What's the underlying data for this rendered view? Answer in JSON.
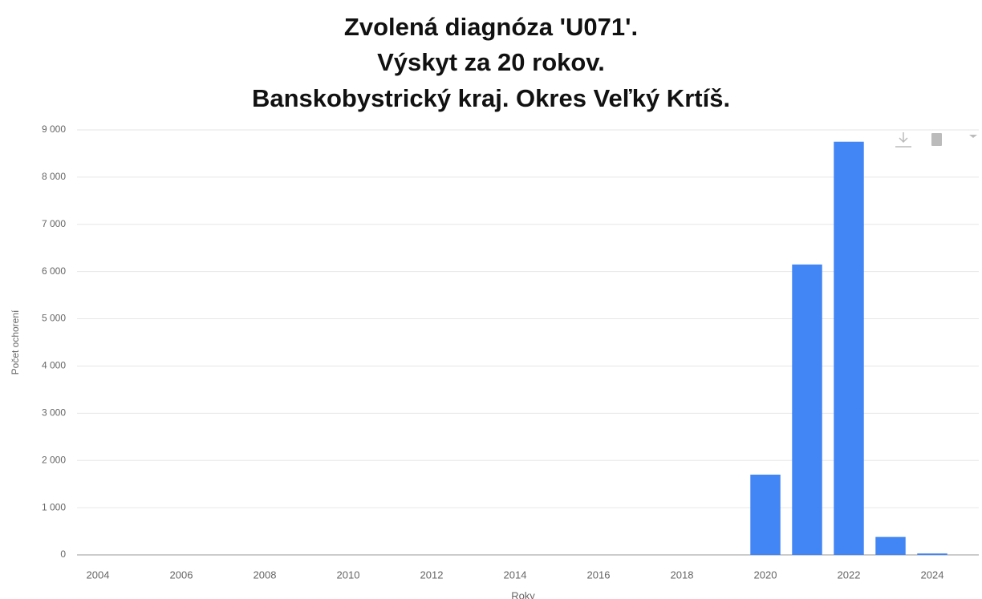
{
  "chart_data": {
    "type": "bar",
    "title": [
      "Zvolená diagnóza 'U071'.",
      "Výskyt za 20 rokov.",
      "Banskobystrický kraj. Okres Veľký Krtíš."
    ],
    "x_label": "Roky",
    "y_label": "Počet ochorení",
    "categories": [
      "2004",
      null,
      "2006",
      null,
      "2008",
      null,
      "2010",
      null,
      "2012",
      null,
      "2014",
      null,
      "2016",
      null,
      "2018",
      null,
      "2020",
      null,
      "2022",
      null,
      "2024"
    ],
    "values": [
      0,
      0,
      0,
      0,
      0,
      0,
      0,
      0,
      0,
      0,
      0,
      0,
      0,
      0,
      0,
      0,
      1700,
      6150,
      8750,
      380,
      30
    ],
    "color": "#4285f4",
    "ylim": [
      0,
      9000
    ],
    "yticks": [
      0,
      {
        "value": 1000,
        "label": "1 000"
      },
      {
        "value": 2000,
        "label": "2 000"
      },
      {
        "value": 3000,
        "label": "3 000"
      },
      {
        "value": 4000,
        "label": "4 000"
      },
      {
        "value": 5000,
        "label": "5 000"
      },
      {
        "value": 6000,
        "label": "6 000"
      },
      {
        "value": 7000,
        "label": "7 000"
      },
      {
        "value": 8000,
        "label": "8 000"
      },
      {
        "value": 9000,
        "label": "9 000"
      }
    ],
    "grid": true
  }
}
